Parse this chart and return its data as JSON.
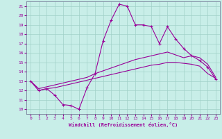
{
  "xlabel": "Windchill (Refroidissement éolien,°C)",
  "background_color": "#c8eee8",
  "grid_color": "#a0d0c8",
  "line_color": "#990099",
  "xlim": [
    -0.5,
    23.5
  ],
  "ylim": [
    9.5,
    21.5
  ],
  "yticks": [
    10,
    11,
    12,
    13,
    14,
    15,
    16,
    17,
    18,
    19,
    20,
    21
  ],
  "xticks": [
    0,
    1,
    2,
    3,
    4,
    5,
    6,
    7,
    8,
    9,
    10,
    11,
    12,
    13,
    14,
    15,
    16,
    17,
    18,
    19,
    20,
    21,
    22,
    23
  ],
  "line1_x": [
    0,
    1,
    2,
    3,
    4,
    5,
    6,
    7,
    8,
    9,
    10,
    11,
    12,
    13,
    14,
    15,
    16,
    17,
    18,
    19,
    20,
    21,
    22,
    23
  ],
  "line1_y": [
    13.0,
    12.0,
    12.2,
    11.5,
    10.5,
    10.4,
    10.0,
    12.3,
    13.8,
    17.3,
    19.5,
    21.2,
    21.0,
    19.0,
    19.0,
    18.8,
    17.0,
    18.8,
    17.5,
    16.5,
    15.7,
    15.2,
    14.5,
    13.2
  ],
  "line2_x": [
    0,
    1,
    2,
    3,
    4,
    5,
    6,
    7,
    8,
    9,
    10,
    11,
    12,
    13,
    14,
    15,
    16,
    17,
    18,
    19,
    20,
    21,
    22,
    23
  ],
  "line2_y": [
    13.0,
    12.2,
    12.4,
    12.6,
    12.8,
    13.0,
    13.2,
    13.4,
    13.8,
    14.1,
    14.4,
    14.7,
    15.0,
    15.3,
    15.5,
    15.7,
    15.9,
    16.1,
    15.8,
    15.5,
    15.7,
    15.5,
    14.8,
    13.4
  ],
  "line3_x": [
    0,
    1,
    2,
    3,
    4,
    5,
    6,
    7,
    8,
    9,
    10,
    11,
    12,
    13,
    14,
    15,
    16,
    17,
    18,
    19,
    20,
    21,
    22,
    23
  ],
  "line3_y": [
    13.0,
    12.0,
    12.2,
    12.3,
    12.5,
    12.7,
    12.9,
    13.1,
    13.3,
    13.5,
    13.7,
    13.9,
    14.1,
    14.3,
    14.5,
    14.7,
    14.8,
    15.0,
    15.0,
    14.9,
    14.8,
    14.6,
    13.8,
    13.3
  ]
}
